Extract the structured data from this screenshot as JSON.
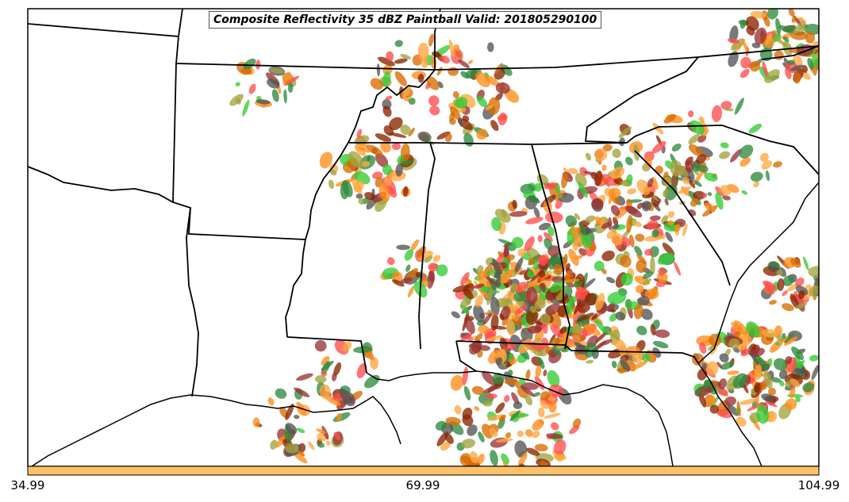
{
  "map": {
    "title": "Composite Reflectivity 35 dBZ Paintball Valid: 201805290100",
    "colorbar_ticks": [
      "34.99",
      "69.99",
      "104.99"
    ],
    "colorbar_color": "#ffc266",
    "paintball_colors": [
      "#ff4d4d",
      "#ff8c1a",
      "#ffa640",
      "#993333",
      "#555555",
      "#33cc33",
      "#a3a33d",
      "#2e8b3e",
      "#8b2500",
      "#d96b00"
    ]
  }
}
